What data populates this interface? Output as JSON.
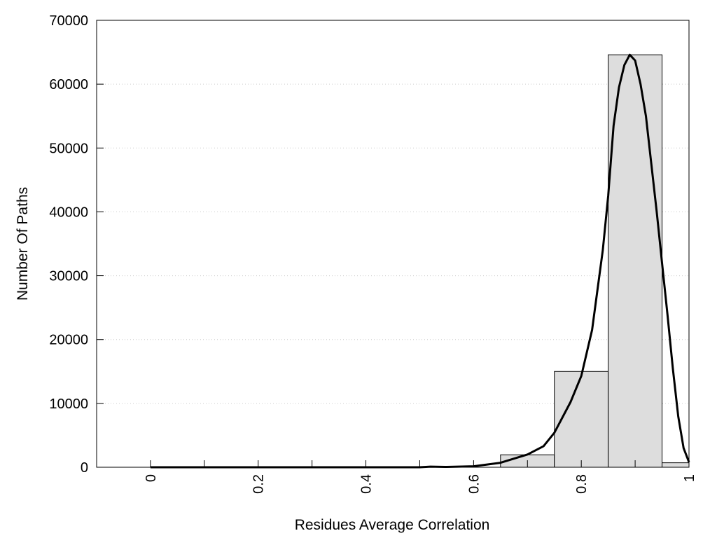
{
  "chart_data": {
    "type": "bar",
    "title": "",
    "xlabel": "Residues Average Correlation",
    "ylabel": "Number Of Paths",
    "xlim": [
      -0.1,
      1.0
    ],
    "ylim": [
      0,
      70000
    ],
    "x_ticks": [
      0,
      0.2,
      0.4,
      0.6,
      0.8,
      1
    ],
    "x_minor_ticks": [
      0.1,
      0.3,
      0.5,
      0.7,
      0.9
    ],
    "x_tick_labels": [
      "0",
      "0.2",
      "0.4",
      "0.6",
      "0.8",
      "1"
    ],
    "y_ticks": [
      0,
      10000,
      20000,
      30000,
      40000,
      50000,
      60000,
      70000
    ],
    "y_tick_labels": [
      "0",
      "10000",
      "20000",
      "30000",
      "40000",
      "50000",
      "60000",
      "70000"
    ],
    "grid": "horizontal dotted",
    "bar_color": "#dddddd",
    "curve_color": "#000000",
    "bars": [
      {
        "x0": 0.65,
        "x1": 0.75,
        "value": 1950
      },
      {
        "x0": 0.75,
        "x1": 0.85,
        "value": 15000
      },
      {
        "x0": 0.85,
        "x1": 0.95,
        "value": 64600
      },
      {
        "x0": 0.95,
        "x1": 1.0,
        "value": 700
      }
    ],
    "fit_curve": {
      "x": [
        0.0,
        0.1,
        0.2,
        0.3,
        0.4,
        0.5,
        0.52,
        0.55,
        0.6,
        0.65,
        0.7,
        0.73,
        0.75,
        0.78,
        0.8,
        0.82,
        0.84,
        0.85,
        0.86,
        0.87,
        0.88,
        0.89,
        0.9,
        0.91,
        0.92,
        0.93,
        0.94,
        0.95,
        0.96,
        0.97,
        0.98,
        0.99,
        1.0
      ],
      "y": [
        0,
        0,
        0,
        0,
        0,
        0,
        100,
        60,
        150,
        700,
        2000,
        3300,
        5400,
        10200,
        14300,
        21500,
        34000,
        42500,
        53500,
        59500,
        63000,
        64600,
        63700,
        60000,
        55000,
        47500,
        40000,
        32000,
        24000,
        15500,
        8000,
        3000,
        800
      ]
    }
  }
}
